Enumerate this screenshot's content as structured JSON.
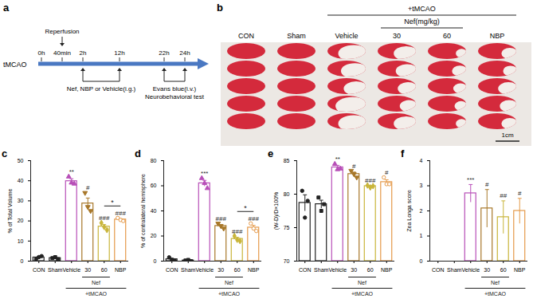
{
  "timeline": {
    "panel": "a",
    "label": "tMCAO",
    "ticks": [
      "0h",
      "40min",
      "2h",
      "12h",
      "22h",
      "24h"
    ],
    "events": [
      {
        "lines": [
          "Reperfusion"
        ],
        "at": "40min"
      },
      {
        "lines": [
          "Nef, NBP or Vehicle(i.g.)"
        ],
        "from": "2h",
        "to": "12h"
      },
      {
        "lines": [
          "Evans blue(i.v.)",
          "Neurobehavioral test"
        ],
        "from": "22h",
        "to": "24h"
      }
    ]
  },
  "photo": {
    "panel": "b",
    "columns": [
      "CON",
      "Sham",
      "Vehicle",
      "30",
      "60",
      "NBP"
    ],
    "group": {
      "label": "+tMCAO",
      "from": "Vehicle",
      "to": "NBP"
    },
    "subgroup": {
      "label": "Nef(mg/kg)",
      "from": "30",
      "to": "60"
    },
    "scale_bar": "1cm"
  },
  "chart_data": [
    {
      "panel": "c",
      "type": "bar",
      "y_label": "% of Total Volume",
      "categories": [
        "CON",
        "Sham",
        "Vehicle",
        "30",
        "60",
        "NBP"
      ],
      "values": [
        1.8,
        1.5,
        39.8,
        28.7,
        17.2,
        20.7
      ],
      "errors": [
        0.5,
        0.3,
        1.2,
        2.7,
        1.0,
        0.4
      ],
      "points": [
        [
          1,
          2,
          2.5
        ],
        [
          1.5,
          2,
          1
        ],
        [
          42,
          39,
          38.5
        ],
        [
          34,
          27,
          25
        ],
        [
          19,
          17,
          15.5
        ],
        [
          21.5,
          20.5,
          20
        ]
      ],
      "colors": [
        "#222222",
        "#222222",
        "#b84fb8",
        "#a8782a",
        "#c9b53a",
        "#e59a4a"
      ],
      "ylim": [
        0,
        50
      ],
      "yticks": [
        0,
        10,
        20,
        30,
        40,
        50
      ],
      "annotations": [
        {
          "category": "Vehicle",
          "text": "**"
        },
        {
          "category": "30",
          "text": "#"
        },
        {
          "category": "60",
          "text": "###"
        },
        {
          "category": "NBP",
          "text": "###"
        }
      ],
      "brackets": [
        {
          "from": "60",
          "to": "NBP",
          "text": "*"
        }
      ],
      "groups": [
        {
          "label": "Nef",
          "from": "30",
          "to": "60"
        },
        {
          "label": "+tMCAO",
          "from": "Vehicle",
          "to": "NBP"
        }
      ]
    },
    {
      "panel": "d",
      "type": "bar",
      "y_label": "% of contralateral hemisphere",
      "categories": [
        "CON",
        "Sham",
        "Vehicle",
        "30",
        "60",
        "NBP"
      ],
      "values": [
        1.5,
        0.5,
        62,
        28,
        17.7,
        26.7
      ],
      "errors": [
        0.8,
        0.3,
        2.3,
        1.2,
        1.2,
        1.8
      ],
      "points": [
        [
          3,
          1,
          0.5
        ],
        [
          0.5,
          1,
          0
        ],
        [
          66,
          62,
          58
        ],
        [
          30,
          28,
          26
        ],
        [
          20,
          17,
          16
        ],
        [
          30,
          26,
          24
        ]
      ],
      "colors": [
        "#222222",
        "#222222",
        "#b84fb8",
        "#a8782a",
        "#c9b53a",
        "#e59a4a"
      ],
      "ylim": [
        0,
        80
      ],
      "yticks": [
        0,
        20,
        40,
        60,
        80
      ],
      "annotations": [
        {
          "category": "Vehicle",
          "text": "***"
        },
        {
          "category": "30",
          "text": "###"
        },
        {
          "category": "60",
          "text": "###"
        },
        {
          "category": "NBP",
          "text": "###"
        }
      ],
      "brackets": [
        {
          "from": "60",
          "to": "NBP",
          "text": "*"
        }
      ],
      "groups": [
        {
          "label": "Nef",
          "from": "30",
          "to": "60"
        },
        {
          "label": "+tMCAO",
          "from": "Vehicle",
          "to": "NBP"
        }
      ]
    },
    {
      "panel": "e",
      "type": "bar",
      "y_label": "(W-D)/D×100%",
      "categories": [
        "CON",
        "Sham",
        "Vehicle",
        "30",
        "60",
        "NBP"
      ],
      "values": [
        78.7,
        78.5,
        84,
        83,
        81.2,
        81.8
      ],
      "errors": [
        1.2,
        0.6,
        0.3,
        0.3,
        0.1,
        0.35
      ],
      "points": [
        [
          80.5,
          76.5,
          79
        ],
        [
          79.5,
          77.5,
          78.5
        ],
        [
          84.5,
          83.7,
          83.8
        ],
        [
          83.5,
          83,
          82.5
        ],
        [
          81.3,
          81,
          81.2
        ],
        [
          82.5,
          81.5,
          81.5
        ]
      ],
      "colors": [
        "#222222",
        "#222222",
        "#b84fb8",
        "#a8782a",
        "#c9b53a",
        "#e59a4a"
      ],
      "ylim": [
        70,
        85
      ],
      "yticks": [
        70,
        75,
        80,
        85
      ],
      "annotations": [
        {
          "category": "Vehicle",
          "text": "**"
        },
        {
          "category": "30",
          "text": "#"
        },
        {
          "category": "60",
          "text": "###"
        },
        {
          "category": "NBP",
          "text": "#"
        }
      ],
      "groups": [
        {
          "label": "Nef",
          "from": "30",
          "to": "60"
        },
        {
          "label": "+tMCAO",
          "from": "Vehicle",
          "to": "NBP"
        }
      ]
    },
    {
      "panel": "f",
      "type": "bar",
      "y_label": "Zea Longa score",
      "categories": [
        "CON",
        "Sham",
        "Vehicle",
        "30",
        "60",
        "NBP"
      ],
      "values": [
        0,
        0,
        2.7,
        2.1,
        1.75,
        2.0
      ],
      "errors": [
        0,
        0,
        0.35,
        0.75,
        0.65,
        0.5
      ],
      "colors": [
        "#222222",
        "#222222",
        "#b84fb8",
        "#a8782a",
        "#c9b53a",
        "#e59a4a"
      ],
      "ylim": [
        0,
        4
      ],
      "yticks": [
        0,
        1,
        2,
        3,
        4
      ],
      "annotations": [
        {
          "category": "Vehicle",
          "text": "***"
        },
        {
          "category": "30",
          "text": "#"
        },
        {
          "category": "60",
          "text": "##"
        },
        {
          "category": "NBP",
          "text": "#"
        }
      ],
      "groups": [
        {
          "label": "Nef",
          "from": "30",
          "to": "60"
        },
        {
          "label": "+tMCAO",
          "from": "Vehicle",
          "to": "NBP"
        }
      ]
    }
  ]
}
